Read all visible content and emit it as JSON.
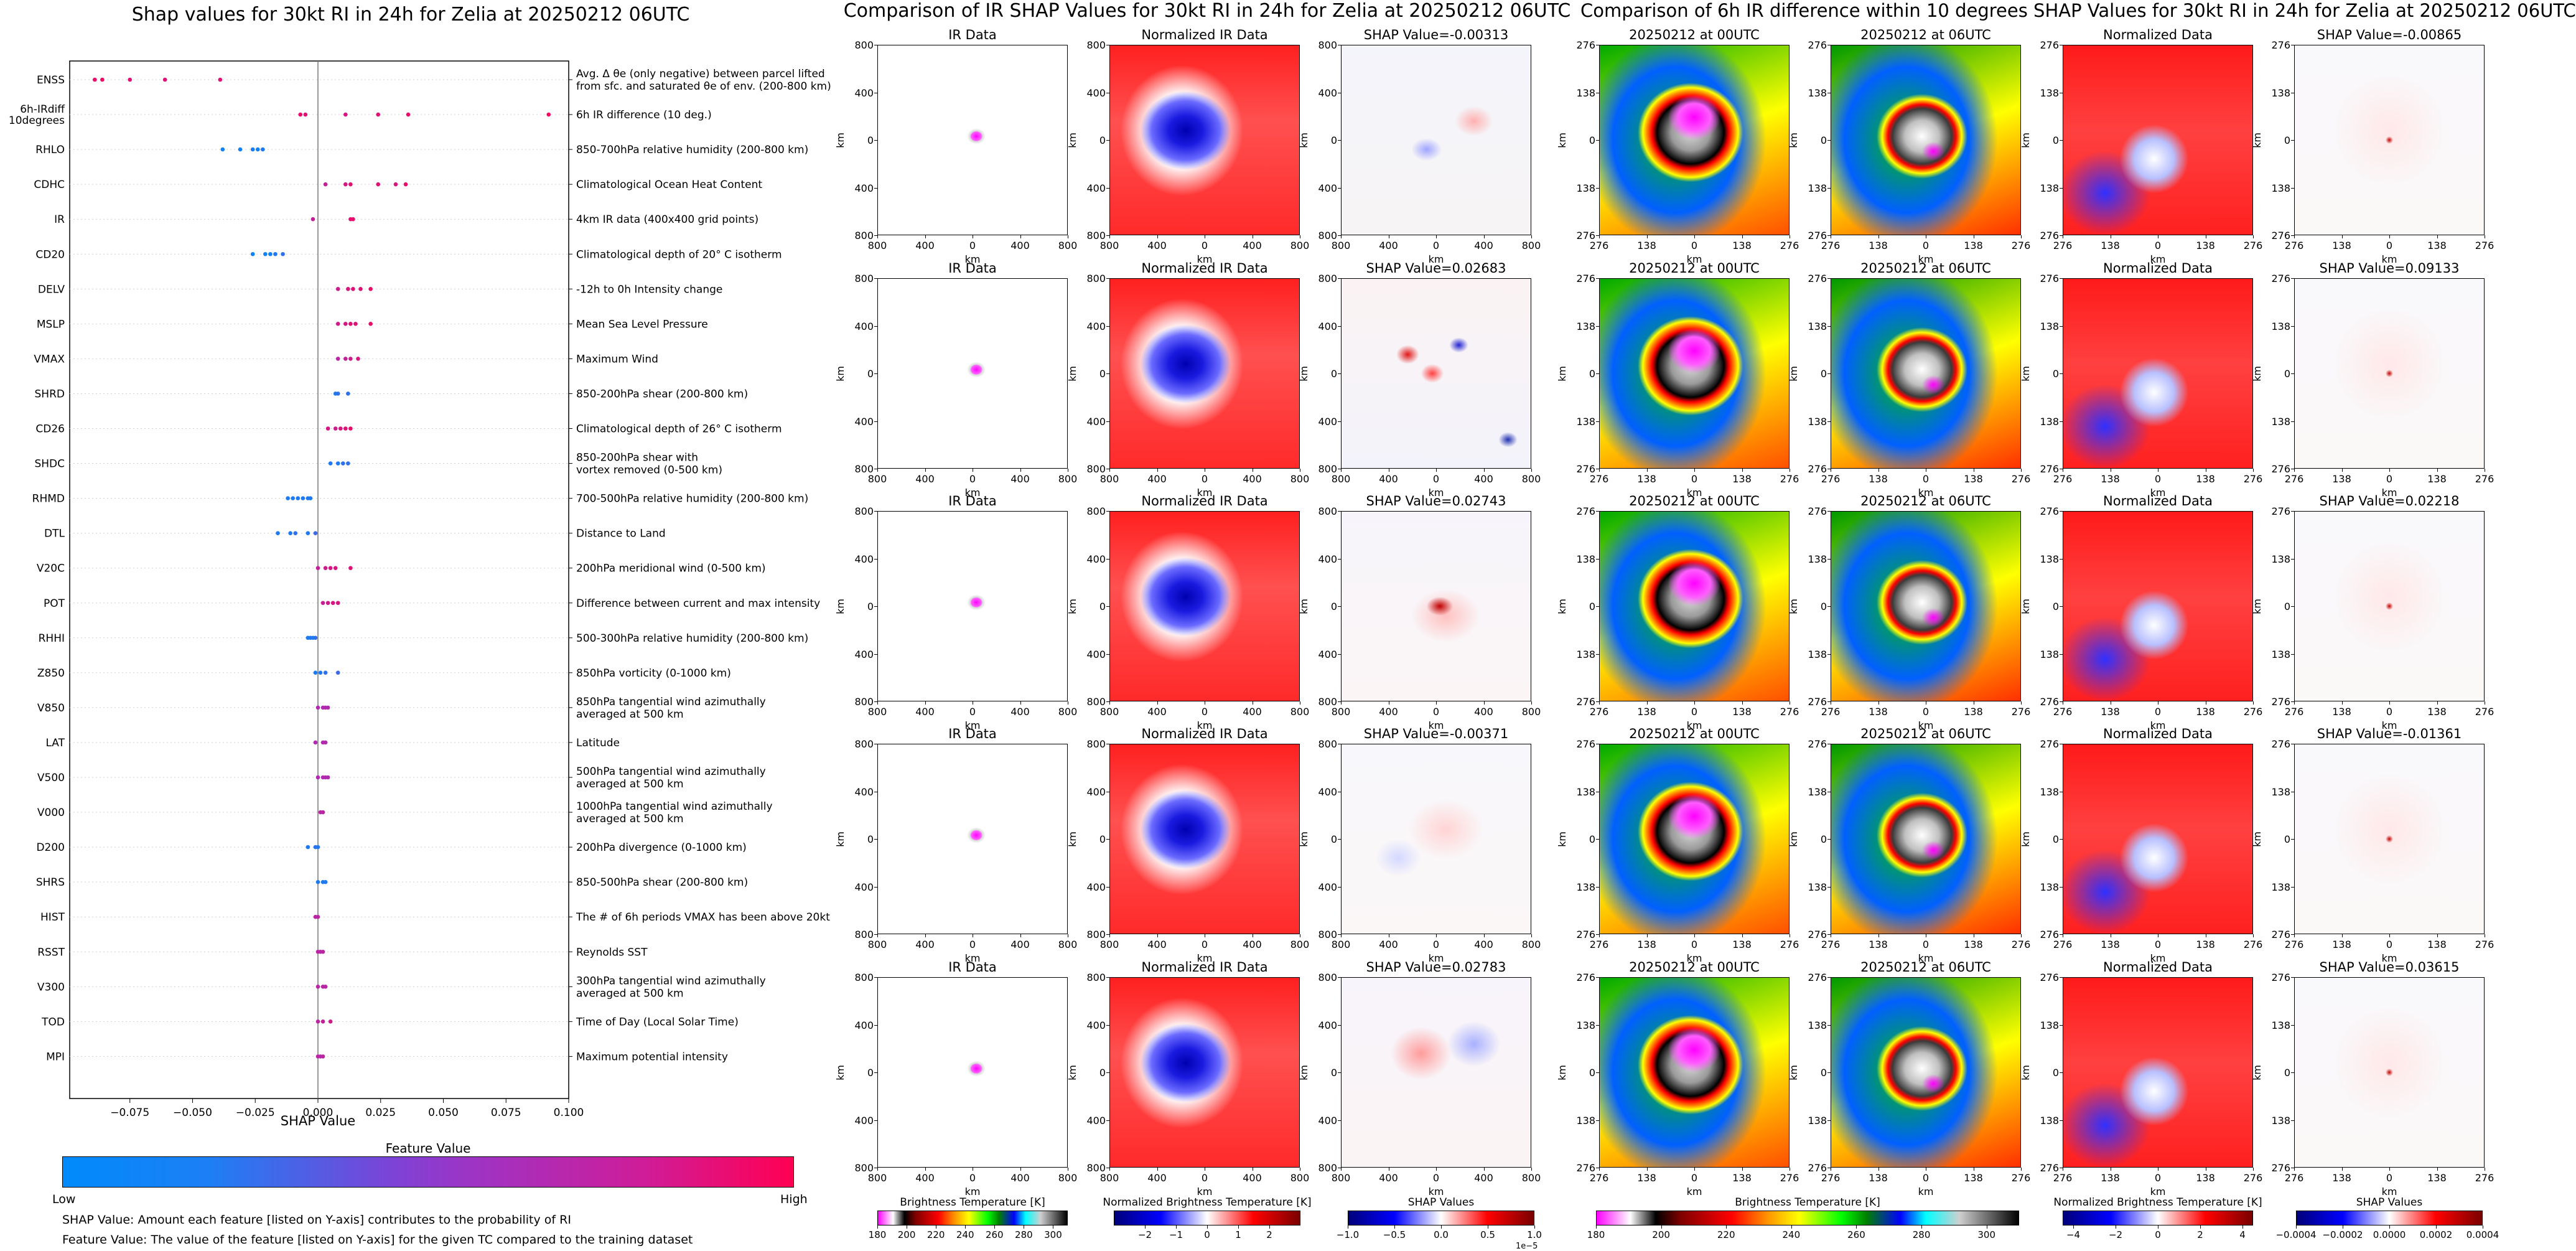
{
  "left_panel": {
    "title": "Shap values for 30kt RI in 24h for Zelia at 20250212 06UTC",
    "x_axis_label": "SHAP Value",
    "colorbar": {
      "title": "Feature Value",
      "low": "Low",
      "high": "High",
      "low_color": "#008afb",
      "high_color": "#ff0052"
    },
    "footnotes": [
      "SHAP Value: Amount each feature [listed on Y-axis] contributes to the probability of RI",
      "Feature Value: The value of the feature [listed on Y-axis] for the given TC compared to the training dataset"
    ]
  },
  "chart_data": [
    {
      "type": "scatter",
      "subtype": "shap-beeswarm",
      "title": "Shap values for 30kt RI in 24h for Zelia at 20250212 06UTC",
      "xlabel": "SHAP Value",
      "ylabel": "",
      "xlim": [
        -0.099,
        0.1
      ],
      "xticks": [
        "−0.075",
        "−0.050",
        "−0.025",
        "0.000",
        "0.025",
        "0.050",
        "0.075",
        "0.100"
      ],
      "xtick_values": [
        -0.075,
        -0.05,
        -0.025,
        0,
        0.025,
        0.05,
        0.075,
        0.1
      ],
      "features": [
        {
          "name": "ENSS",
          "desc": "Avg. Δ θe (only negative) between parcel lifted\nfrom sfc. and saturated θe of env. (200-800 km)",
          "points": [
            [
              -0.089,
              0.9
            ],
            [
              -0.086,
              0.9
            ],
            [
              -0.075,
              0.85
            ],
            [
              -0.061,
              0.85
            ],
            [
              -0.039,
              0.85
            ]
          ]
        },
        {
          "name": "6h-IRdiff\n10degrees",
          "desc": "6h IR difference (10 deg.)",
          "points": [
            [
              -0.007,
              0.9
            ],
            [
              -0.005,
              0.85
            ],
            [
              0.011,
              0.8
            ],
            [
              0.024,
              0.85
            ],
            [
              0.036,
              0.9
            ],
            [
              0.092,
              0.95
            ]
          ]
        },
        {
          "name": "RHLO",
          "desc": "850-700hPa relative humidity (200-800 km)",
          "points": [
            [
              -0.038,
              0.05
            ],
            [
              -0.031,
              0.05
            ],
            [
              -0.026,
              0.08
            ],
            [
              -0.024,
              0.05
            ],
            [
              -0.022,
              0.1
            ]
          ]
        },
        {
          "name": "CDHC",
          "desc": "Climatological Ocean Heat Content",
          "points": [
            [
              0.003,
              0.7
            ],
            [
              0.011,
              0.8
            ],
            [
              0.013,
              0.85
            ],
            [
              0.024,
              0.85
            ],
            [
              0.031,
              0.8
            ],
            [
              0.035,
              0.9
            ]
          ]
        },
        {
          "name": "IR",
          "desc": "4km IR data (400x400 grid points)",
          "points": [
            [
              -0.002,
              0.7
            ],
            [
              0.013,
              0.85
            ],
            [
              0.014,
              0.9
            ]
          ]
        },
        {
          "name": "CD20",
          "desc": "Climatological depth of 20° C isotherm",
          "points": [
            [
              -0.026,
              0.05
            ],
            [
              -0.021,
              0.05
            ],
            [
              -0.019,
              0.05
            ],
            [
              -0.017,
              0.1
            ],
            [
              -0.014,
              0.15
            ]
          ]
        },
        {
          "name": "DELV",
          "desc": "-12h to 0h Intensity change",
          "points": [
            [
              0.008,
              0.75
            ],
            [
              0.012,
              0.8
            ],
            [
              0.014,
              0.85
            ],
            [
              0.017,
              0.85
            ],
            [
              0.021,
              0.9
            ]
          ]
        },
        {
          "name": "MSLP",
          "desc": "Mean Sea Level Pressure",
          "points": [
            [
              0.008,
              0.75
            ],
            [
              0.011,
              0.8
            ],
            [
              0.013,
              0.85
            ],
            [
              0.015,
              0.85
            ],
            [
              0.021,
              0.9
            ]
          ]
        },
        {
          "name": "VMAX",
          "desc": "Maximum Wind",
          "points": [
            [
              0.008,
              0.65
            ],
            [
              0.011,
              0.7
            ],
            [
              0.013,
              0.75
            ],
            [
              0.016,
              0.8
            ]
          ]
        },
        {
          "name": "SHRD",
          "desc": "850-200hPa shear (200-800 km)",
          "points": [
            [
              0.007,
              0.1
            ],
            [
              0.008,
              0.15
            ],
            [
              0.012,
              0.15
            ]
          ]
        },
        {
          "name": "CD26",
          "desc": "Climatological depth of 26° C isotherm",
          "points": [
            [
              0.004,
              0.8
            ],
            [
              0.007,
              0.75
            ],
            [
              0.009,
              0.8
            ],
            [
              0.011,
              0.85
            ],
            [
              0.013,
              0.9
            ]
          ]
        },
        {
          "name": "SHDC",
          "desc": "850-200hPa shear with\nvortex removed (0-500 km)",
          "points": [
            [
              0.005,
              0.1
            ],
            [
              0.008,
              0.1
            ],
            [
              0.01,
              0.15
            ],
            [
              0.012,
              0.15
            ]
          ]
        },
        {
          "name": "RHMD",
          "desc": "700-500hPa relative humidity (200-800 km)",
          "points": [
            [
              -0.012,
              0.1
            ],
            [
              -0.01,
              0.1
            ],
            [
              -0.008,
              0.1
            ],
            [
              -0.006,
              0.1
            ],
            [
              -0.004,
              0.1
            ],
            [
              -0.003,
              0.1
            ]
          ]
        },
        {
          "name": "DTL",
          "desc": "Distance to Land",
          "points": [
            [
              -0.016,
              0.1
            ],
            [
              -0.011,
              0.1
            ],
            [
              -0.009,
              0.15
            ],
            [
              -0.004,
              0.1
            ],
            [
              -0.001,
              0.2
            ]
          ]
        },
        {
          "name": "V20C",
          "desc": "200hPa meridional wind (0-500 km)",
          "points": [
            [
              0.0,
              0.7
            ],
            [
              0.003,
              0.75
            ],
            [
              0.005,
              0.8
            ],
            [
              0.007,
              0.8
            ],
            [
              0.013,
              0.85
            ]
          ]
        },
        {
          "name": "POT",
          "desc": "Difference between current and max intensity",
          "points": [
            [
              0.002,
              0.7
            ],
            [
              0.004,
              0.75
            ],
            [
              0.006,
              0.8
            ],
            [
              0.008,
              0.8
            ]
          ]
        },
        {
          "name": "RHHI",
          "desc": "500-300hPa relative humidity (200-800 km)",
          "points": [
            [
              -0.004,
              0.1
            ],
            [
              -0.003,
              0.1
            ],
            [
              -0.002,
              0.1
            ],
            [
              -0.001,
              0.15
            ]
          ]
        },
        {
          "name": "Z850",
          "desc": "850hPa vorticity (0-1000 km)",
          "points": [
            [
              -0.001,
              0.1
            ],
            [
              0.001,
              0.1
            ],
            [
              0.003,
              0.15
            ],
            [
              0.008,
              0.2
            ]
          ]
        },
        {
          "name": "V850",
          "desc": "850hPa tangential wind azimuthally\naveraged at 500 km",
          "points": [
            [
              0.0,
              0.6
            ],
            [
              0.002,
              0.6
            ],
            [
              0.003,
              0.6
            ],
            [
              0.004,
              0.6
            ]
          ]
        },
        {
          "name": "LAT",
          "desc": "Latitude",
          "points": [
            [
              -0.001,
              0.6
            ],
            [
              0.002,
              0.6
            ],
            [
              0.003,
              0.6
            ]
          ]
        },
        {
          "name": "V500",
          "desc": "500hPa tangential wind azimuthally\naveraged at 500 km",
          "points": [
            [
              0.0,
              0.6
            ],
            [
              0.002,
              0.6
            ],
            [
              0.003,
              0.6
            ],
            [
              0.004,
              0.6
            ]
          ]
        },
        {
          "name": "V000",
          "desc": "1000hPa tangential wind azimuthally\naveraged at 500 km",
          "points": [
            [
              0.001,
              0.65
            ],
            [
              0.002,
              0.65
            ]
          ]
        },
        {
          "name": "D200",
          "desc": "200hPa divergence (0-1000 km)",
          "points": [
            [
              -0.004,
              0.1
            ],
            [
              -0.001,
              0.15
            ],
            [
              0.0,
              0.1
            ]
          ]
        },
        {
          "name": "SHRS",
          "desc": "850-500hPa shear (200-800 km)",
          "points": [
            [
              0.0,
              0.1
            ],
            [
              0.002,
              0.1
            ],
            [
              0.003,
              0.1
            ]
          ]
        },
        {
          "name": "HIST",
          "desc": "The # of 6h periods VMAX has been above 20kt",
          "points": [
            [
              -0.001,
              0.65
            ],
            [
              0.0,
              0.65
            ]
          ]
        },
        {
          "name": "RSST",
          "desc": "Reynolds SST",
          "points": [
            [
              0.0,
              0.65
            ],
            [
              0.001,
              0.65
            ],
            [
              0.002,
              0.65
            ]
          ]
        },
        {
          "name": "V300",
          "desc": "300hPa tangential wind azimuthally\naveraged at 500 km",
          "points": [
            [
              0.0,
              0.65
            ],
            [
              0.002,
              0.65
            ],
            [
              0.003,
              0.65
            ]
          ]
        },
        {
          "name": "TOD",
          "desc": "Time of Day (Local Solar Time)",
          "points": [
            [
              0.0,
              0.65
            ],
            [
              0.002,
              0.7
            ],
            [
              0.005,
              0.75
            ]
          ]
        },
        {
          "name": "MPI",
          "desc": "Maximum potential intensity",
          "points": [
            [
              0.0,
              0.65
            ],
            [
              0.001,
              0.65
            ],
            [
              0.002,
              0.65
            ]
          ]
        }
      ]
    },
    {
      "type": "heatmap",
      "title": "Comparison of IR SHAP Values for 30kt RI in 24h for Zelia at 20250212 06UTC",
      "column_titles": [
        "IR Data",
        "Normalized IR Data"
      ],
      "shap_titles": [
        "SHAP Value=-0.00313",
        "SHAP Value=0.02683",
        "SHAP Value=0.02743",
        "SHAP Value=-0.00371",
        "SHAP Value=0.02783"
      ],
      "axis_label": "km",
      "ticks": [
        "800",
        "400",
        "0",
        "400",
        "800"
      ],
      "colorbars": [
        {
          "label": "Brightness Temperature [K]",
          "ticks": [
            "180",
            "200",
            "220",
            "240",
            "260",
            "280",
            "300"
          ],
          "range": [
            180,
            310
          ]
        },
        {
          "label": "Normalized Brightness Temperature [K]",
          "ticks": [
            "−2",
            "−1",
            "0",
            "1",
            "2"
          ],
          "range": [
            -3,
            3
          ]
        },
        {
          "label": "SHAP Values",
          "ticks": [
            "−1.0",
            "−0.5",
            "0.0",
            "0.5",
            "1.0"
          ],
          "range": [
            -1.0,
            1.0
          ],
          "offset": "1e−5"
        }
      ]
    },
    {
      "type": "heatmap",
      "title": "Comparison of 6h IR difference within 10 degrees SHAP Values for 30kt RI in 24h for Zelia at 20250212 06UTC",
      "column_titles": [
        "20250212 at 00UTC",
        "20250212 at 06UTC",
        "Normalized Data"
      ],
      "shap_titles": [
        "SHAP Value=-0.00865",
        "SHAP Value=0.09133",
        "SHAP Value=0.02218",
        "SHAP Value=-0.01361",
        "SHAP Value=0.03615"
      ],
      "axis_label": "km",
      "ticks": [
        "276",
        "138",
        "0",
        "138",
        "276"
      ],
      "colorbars": [
        {
          "label": "Brightness Temperature [K]",
          "ticks": [
            "180",
            "200",
            "220",
            "240",
            "260",
            "280",
            "300"
          ],
          "range": [
            180,
            310
          ]
        },
        {
          "label": "Normalized Brightness Temperature [K]",
          "ticks": [
            "−4",
            "−2",
            "0",
            "2",
            "4"
          ],
          "range": [
            -4.5,
            4.5
          ]
        },
        {
          "label": "SHAP Values",
          "ticks": [
            "−0.0004",
            "−0.0002",
            "0.0000",
            "0.0002",
            "0.0004"
          ],
          "range": [
            -0.0004,
            0.0004
          ]
        }
      ]
    }
  ]
}
